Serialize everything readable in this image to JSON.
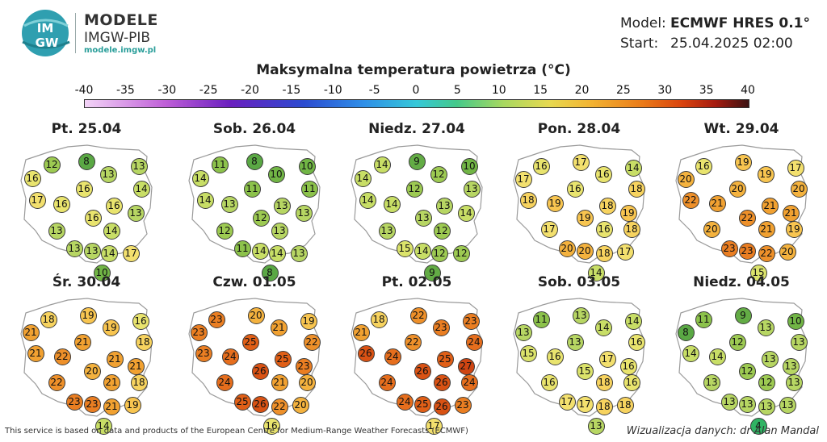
{
  "brand": {
    "logo_text_top": "IM",
    "logo_text_bottom": "GW",
    "title": "MODELE",
    "subtitle": "IMGW-PIB",
    "url": "modele.imgw.pl"
  },
  "meta": {
    "model_label": "Model:",
    "model_value": "ECMWF HRES 0.1°",
    "start_label": "Start:",
    "start_value": "25.04.2025 02:00"
  },
  "title": "Maksymalna temperatura powietrza (°C)",
  "scale": {
    "ticks": [
      "-40",
      "-35",
      "-30",
      "-25",
      "-20",
      "-15",
      "-10",
      "-5",
      "0",
      "5",
      "10",
      "15",
      "20",
      "25",
      "30",
      "35",
      "40"
    ],
    "min": -40,
    "max": 40
  },
  "panels": [
    {
      "title": "Pt. 25.04",
      "values": [
        12,
        8,
        13,
        16,
        13,
        14,
        16,
        17,
        16,
        16,
        16,
        13,
        13,
        14,
        13,
        13,
        14,
        17,
        10
      ]
    },
    {
      "title": "Sob. 26.04",
      "values": [
        11,
        8,
        10,
        14,
        10,
        11,
        11,
        14,
        13,
        13,
        12,
        13,
        12,
        13,
        11,
        14,
        14,
        13,
        8
      ]
    },
    {
      "title": "Niedz. 27.04",
      "values": [
        14,
        9,
        10,
        14,
        12,
        13,
        12,
        14,
        14,
        13,
        13,
        14,
        13,
        12,
        15,
        14,
        12,
        12,
        9
      ]
    },
    {
      "title": "Pon. 28.04",
      "values": [
        16,
        17,
        14,
        17,
        16,
        18,
        16,
        18,
        19,
        18,
        19,
        19,
        17,
        16,
        18,
        20,
        20,
        18,
        17,
        14
      ]
    },
    {
      "title": "Wt. 29.04",
      "values": [
        16,
        19,
        17,
        20,
        19,
        20,
        20,
        22,
        21,
        21,
        22,
        21,
        20,
        21,
        19,
        23,
        23,
        22,
        20,
        15
      ]
    },
    {
      "title": "Śr. 30.04",
      "values": [
        18,
        19,
        16,
        21,
        19,
        18,
        21,
        21,
        22,
        21,
        20,
        21,
        22,
        21,
        18,
        23,
        23,
        21,
        19,
        14
      ]
    },
    {
      "title": "Czw. 01.05",
      "values": [
        23,
        20,
        19,
        23,
        21,
        22,
        25,
        23,
        24,
        25,
        26,
        23,
        24,
        21,
        20,
        25,
        26,
        22,
        20,
        16
      ]
    },
    {
      "title": "Pt. 02.05",
      "values": [
        18,
        22,
        23,
        21,
        23,
        24,
        22,
        26,
        24,
        25,
        26,
        27,
        24,
        26,
        24,
        24,
        25,
        26,
        23,
        17
      ]
    },
    {
      "title": "Sob. 03.05",
      "values": [
        11,
        13,
        14,
        13,
        14,
        16,
        13,
        15,
        16,
        17,
        15,
        16,
        16,
        18,
        16,
        17,
        17,
        18,
        18,
        13
      ]
    },
    {
      "title": "Niedz. 04.05",
      "values": [
        11,
        9,
        10,
        8,
        13,
        13,
        12,
        14,
        14,
        13,
        12,
        13,
        13,
        12,
        13,
        13,
        13,
        13,
        13,
        4
      ]
    }
  ],
  "colors": {
    "t4": "#2fb463",
    "t8": "#5aa844",
    "t9": "#63ac45",
    "t10": "#71b545",
    "t11": "#8cc24b",
    "t12": "#9dca52",
    "t13": "#b7d663",
    "t14": "#c8de66",
    "t15": "#dbe36b",
    "t16": "#e9e46e",
    "t17": "#f3e06e",
    "t18": "#f7d35f",
    "t19": "#f8c550",
    "t20": "#f4b23e",
    "t21": "#f1a131",
    "t22": "#ee902a",
    "t23": "#ea7e22",
    "t24": "#e66e1d",
    "t25": "#e05f17",
    "t26": "#d95214",
    "t27": "#cf4512",
    "map_fill": "#ffffff",
    "map_stroke": "#9a9a9a"
  },
  "footer": {
    "left": "This service is based on data and products of the European Centre for Medium-Range Weather Forecasts (ECMWF)",
    "right": "Wizualizacja danych: dr Alan Mandal"
  }
}
